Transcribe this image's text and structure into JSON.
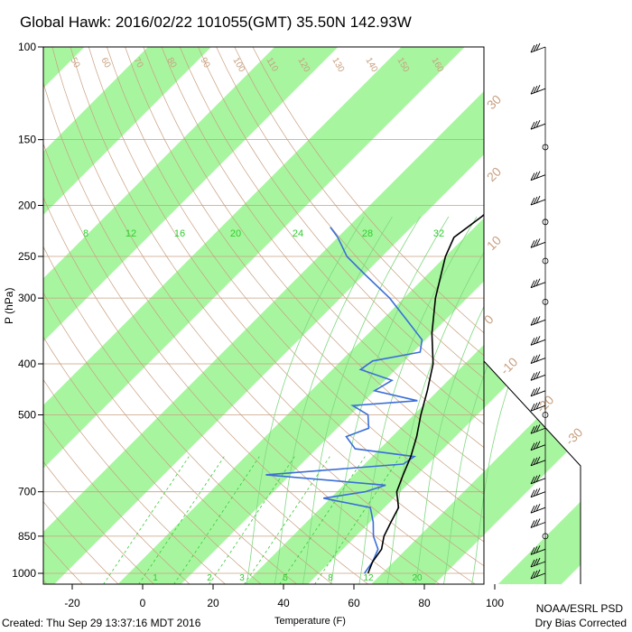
{
  "title": "Global Hawk: 2016/02/22 101055(GMT) 35.50N 142.93W",
  "footer": {
    "created": "Created: Thu Sep 29 13:37:16 MDT 2016",
    "org": "NOAA/ESRL PSD",
    "note": "Dry Bias Corrected"
  },
  "colors": {
    "isotherm_band": "#a8f5a0",
    "temperature": "#000000",
    "dewpoint": "#3a6fd8",
    "dry_adiabat": "#c8a080",
    "moist_adiabat": "#7fd87f",
    "mixing_ratio": "#33cc33",
    "isobar": "#c8a080"
  },
  "chart_data": {
    "type": "skew-t",
    "xlabel": "Temperature (F)",
    "ylabel": "P (hPa)",
    "xlim": [
      -30,
      110
    ],
    "y_scale": "log",
    "ylim": [
      100,
      1050
    ],
    "x_ticks": [
      "-20",
      "0",
      "20",
      "40",
      "60",
      "80",
      "100"
    ],
    "x_tick_values": [
      -20,
      0,
      20,
      40,
      60,
      80,
      100
    ],
    "y_ticks": [
      "100",
      "150",
      "200",
      "250",
      "300",
      "400",
      "500",
      "700",
      "850",
      "1000"
    ],
    "y_tick_values": [
      100,
      150,
      200,
      250,
      300,
      400,
      500,
      700,
      850,
      1000
    ],
    "isotherm_labels": [
      "-30",
      "-20",
      "-10",
      "0",
      "10",
      "20",
      "30"
    ],
    "mixing_ratio_labels_top": [
      "8",
      "12",
      "16",
      "20",
      "24",
      "28",
      "32"
    ],
    "mixing_ratio_labels_bottom": [
      "1",
      "2",
      "3",
      "5",
      "8",
      "12",
      "20"
    ],
    "dry_adiabat_labels": [
      "50",
      "60",
      "70",
      "80",
      "90",
      "100",
      "110",
      "120",
      "130",
      "140",
      "150",
      "160"
    ],
    "temperature_profile": [
      {
        "p": 1000,
        "t": 64
      },
      {
        "p": 950,
        "t": 62
      },
      {
        "p": 900,
        "t": 61
      },
      {
        "p": 850,
        "t": 58
      },
      {
        "p": 800,
        "t": 56
      },
      {
        "p": 750,
        "t": 54
      },
      {
        "p": 700,
        "t": 49
      },
      {
        "p": 650,
        "t": 46
      },
      {
        "p": 600,
        "t": 43
      },
      {
        "p": 550,
        "t": 39
      },
      {
        "p": 500,
        "t": 34
      },
      {
        "p": 450,
        "t": 29
      },
      {
        "p": 400,
        "t": 23
      },
      {
        "p": 350,
        "t": 14
      },
      {
        "p": 300,
        "t": 5
      },
      {
        "p": 250,
        "t": -4
      },
      {
        "p": 230,
        "t": -7
      },
      {
        "p": 210,
        "t": -5
      },
      {
        "p": 190,
        "t": -4
      },
      {
        "p": 170,
        "t": -2
      },
      {
        "p": 150,
        "t": 2
      },
      {
        "p": 130,
        "t": 2
      },
      {
        "p": 115,
        "t": 8
      },
      {
        "p": 100,
        "t": 12
      }
    ],
    "dewpoint_profile": [
      {
        "p": 1000,
        "t": 63
      },
      {
        "p": 950,
        "t": 62
      },
      {
        "p": 900,
        "t": 60
      },
      {
        "p": 850,
        "t": 55
      },
      {
        "p": 800,
        "t": 51
      },
      {
        "p": 750,
        "t": 46
      },
      {
        "p": 720,
        "t": 30
      },
      {
        "p": 700,
        "t": 40
      },
      {
        "p": 680,
        "t": 44
      },
      {
        "p": 650,
        "t": 7
      },
      {
        "p": 620,
        "t": 43
      },
      {
        "p": 600,
        "t": 44
      },
      {
        "p": 580,
        "t": 25
      },
      {
        "p": 550,
        "t": 19
      },
      {
        "p": 530,
        "t": 23
      },
      {
        "p": 500,
        "t": 19
      },
      {
        "p": 480,
        "t": 12
      },
      {
        "p": 470,
        "t": 29
      },
      {
        "p": 450,
        "t": 14
      },
      {
        "p": 430,
        "t": 16
      },
      {
        "p": 410,
        "t": 4
      },
      {
        "p": 395,
        "t": 5
      },
      {
        "p": 380,
        "t": 16
      },
      {
        "p": 360,
        "t": 13
      },
      {
        "p": 330,
        "t": 3
      },
      {
        "p": 300,
        "t": -8
      },
      {
        "p": 270,
        "t": -22
      },
      {
        "p": 250,
        "t": -32
      },
      {
        "p": 230,
        "t": -40
      },
      {
        "p": 220,
        "t": -45
      }
    ],
    "wind_barbs": [
      {
        "p": 100,
        "type": "barb"
      },
      {
        "p": 120,
        "type": "barb"
      },
      {
        "p": 140,
        "type": "barb"
      },
      {
        "p": 155,
        "type": "calm"
      },
      {
        "p": 175,
        "type": "barb"
      },
      {
        "p": 195,
        "type": "barb"
      },
      {
        "p": 215,
        "type": "calm"
      },
      {
        "p": 235,
        "type": "barb"
      },
      {
        "p": 255,
        "type": "calm"
      },
      {
        "p": 280,
        "type": "barb"
      },
      {
        "p": 305,
        "type": "calm"
      },
      {
        "p": 330,
        "type": "barb"
      },
      {
        "p": 360,
        "type": "barb"
      },
      {
        "p": 390,
        "type": "barb"
      },
      {
        "p": 420,
        "type": "barb"
      },
      {
        "p": 450,
        "type": "barb"
      },
      {
        "p": 480,
        "type": "barb"
      },
      {
        "p": 500,
        "type": "calm"
      },
      {
        "p": 530,
        "type": "barb"
      },
      {
        "p": 570,
        "type": "barb"
      },
      {
        "p": 610,
        "type": "barb"
      },
      {
        "p": 660,
        "type": "barb"
      },
      {
        "p": 700,
        "type": "barb"
      },
      {
        "p": 750,
        "type": "barb"
      },
      {
        "p": 800,
        "type": "barb"
      },
      {
        "p": 850,
        "type": "calm"
      },
      {
        "p": 900,
        "type": "barb"
      },
      {
        "p": 950,
        "type": "barb"
      },
      {
        "p": 1000,
        "type": "barb"
      }
    ]
  }
}
